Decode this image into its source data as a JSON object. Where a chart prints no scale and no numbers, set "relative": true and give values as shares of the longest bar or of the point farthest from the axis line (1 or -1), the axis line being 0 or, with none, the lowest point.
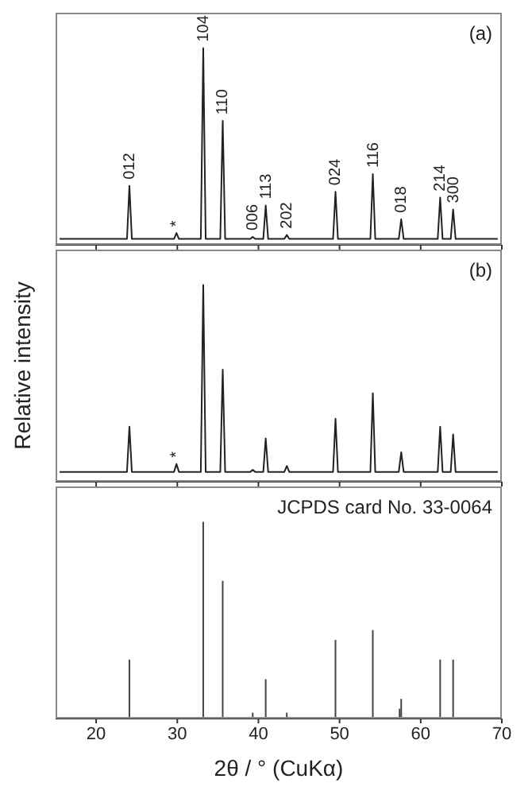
{
  "chart_data": [
    {
      "type": "line",
      "relative": true,
      "marker": "none",
      "tick_labels": false,
      "xlim": [
        15,
        70
      ],
      "xticks": [
        20,
        30,
        40,
        50,
        60,
        70
      ],
      "x": [
        15.5,
        20,
        23.8,
        24.1,
        24.4,
        29.6,
        29.9,
        30.2,
        32.9,
        33.2,
        33.5,
        35.3,
        35.6,
        35.9,
        39.0,
        39.3,
        39.6,
        40.6,
        40.9,
        41.2,
        43.2,
        43.5,
        43.8,
        49.2,
        49.5,
        49.8,
        53.8,
        54.1,
        54.4,
        57.3,
        57.6,
        57.9,
        62.1,
        62.4,
        62.7,
        63.7,
        64.0,
        64.3,
        69.5
      ],
      "series": [
        {
          "color": "#222222",
          "values": [
            0.03,
            0.03,
            0.03,
            0.3,
            0.03,
            0.03,
            0.06,
            0.03,
            0.03,
            1,
            0.03,
            0.03,
            0.63,
            0.03,
            0.03,
            0.04,
            0.03,
            0.03,
            0.2,
            0.03,
            0.03,
            0.05,
            0.03,
            0.03,
            0.27,
            0.03,
            0.03,
            0.36,
            0.03,
            0.03,
            0.13,
            0.03,
            0.03,
            0.24,
            0.03,
            0.03,
            0.18,
            0.03,
            0.03
          ]
        }
      ],
      "annotations": [
        "(a)",
        {
          "text": "012",
          "x": 24.1,
          "y": 0.3
        },
        {
          "text": "*",
          "x": 29.9,
          "y": 0.06
        },
        {
          "text": "104",
          "x": 33.2,
          "y": 1
        },
        {
          "text": "110",
          "x": 35.6,
          "y": 0.63
        },
        {
          "text": "006",
          "x": 39.3,
          "y": 0.04
        },
        {
          "text": "113",
          "x": 40.9,
          "y": 0.2
        },
        {
          "text": "202",
          "x": 43.5,
          "y": 0.05
        },
        {
          "text": "024",
          "x": 49.5,
          "y": 0.27
        },
        {
          "text": "116",
          "x": 54.1,
          "y": 0.36
        },
        {
          "text": "018",
          "x": 57.6,
          "y": 0.13
        },
        {
          "text": "214",
          "x": 62.4,
          "y": 0.24
        },
        {
          "text": "300",
          "x": 64.0,
          "y": 0.18
        }
      ]
    },
    {
      "type": "line",
      "relative": true,
      "marker": "none",
      "tick_labels": false,
      "xlim": [
        15,
        70
      ],
      "xticks": [
        20,
        30,
        40,
        50,
        60,
        70
      ],
      "ylabel": "Relative intensity",
      "x": [
        15.5,
        20,
        23.8,
        24.1,
        24.4,
        29.6,
        29.9,
        30.2,
        32.9,
        33.2,
        33.5,
        35.3,
        35.6,
        35.9,
        39.0,
        39.3,
        39.6,
        40.6,
        40.9,
        41.2,
        43.2,
        43.5,
        43.8,
        49.2,
        49.5,
        49.8,
        53.8,
        54.1,
        54.4,
        57.3,
        57.6,
        57.9,
        62.1,
        62.4,
        62.7,
        63.7,
        64.0,
        64.3,
        69.5
      ],
      "series": [
        {
          "color": "#222222",
          "values": [
            0.05,
            0.05,
            0.05,
            0.28,
            0.05,
            0.05,
            0.09,
            0.05,
            0.05,
            1,
            0.05,
            0.05,
            0.57,
            0.05,
            0.05,
            0.06,
            0.05,
            0.05,
            0.22,
            0.05,
            0.05,
            0.08,
            0.05,
            0.05,
            0.32,
            0.05,
            0.05,
            0.45,
            0.05,
            0.05,
            0.15,
            0.05,
            0.05,
            0.28,
            0.05,
            0.05,
            0.24,
            0.05,
            0.05
          ]
        }
      ],
      "annotations": [
        "(b)",
        {
          "text": "*",
          "x": 29.9,
          "y": 0.09
        }
      ]
    },
    {
      "type": "bar",
      "relative": true,
      "tick_labels": "x",
      "xlim": [
        15,
        70
      ],
      "xticks": [
        20,
        30,
        40,
        50,
        60,
        70
      ],
      "xlabel": "2θ / ° (CuKα)",
      "x": [
        24.1,
        33.2,
        35.6,
        39.3,
        40.9,
        43.5,
        49.5,
        54.1,
        57.4,
        57.6,
        62.4,
        64.0
      ],
      "series": [
        {
          "color": "#444444",
          "values": [
            0.3,
            1,
            0.7,
            0.03,
            0.2,
            0.03,
            0.4,
            0.45,
            0.05,
            0.1,
            0.3,
            0.3
          ]
        }
      ],
      "annotations": [
        "JCPDS card No. 33-0064"
      ]
    }
  ]
}
